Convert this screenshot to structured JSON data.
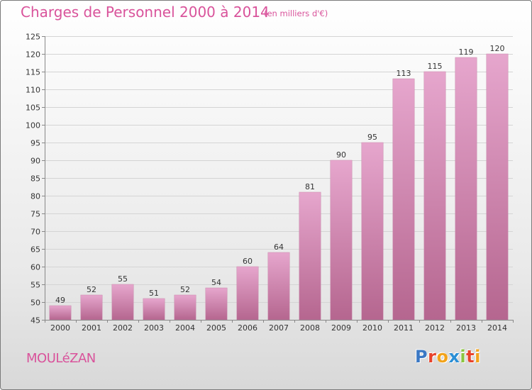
{
  "header": {
    "title": "Charges de Personnel 2000 à 2014",
    "subtitle": "(en milliers d'€)"
  },
  "footer": {
    "place": "MOULéZAN",
    "logo": "Proxiti",
    "logo_colors": [
      "#3b78c4",
      "#e8432b",
      "#f2a31b",
      "#2b8fd6",
      "#8bc53f",
      "#e8432b",
      "#f2a31b"
    ]
  },
  "colors": {
    "bar_light": "#e6a6cd",
    "bar_dark": "#b5668f",
    "grid": "#d4d4d4",
    "axis": "#888888",
    "title": "#d9539b"
  },
  "chart_data": {
    "type": "bar",
    "title": "Charges de Personnel 2000 à 2014",
    "subtitle": "(en milliers d'€)",
    "categories": [
      "2000",
      "2001",
      "2002",
      "2003",
      "2004",
      "2005",
      "2006",
      "2007",
      "2008",
      "2009",
      "2010",
      "2011",
      "2012",
      "2013",
      "2014"
    ],
    "values": [
      49,
      52,
      55,
      51,
      52,
      54,
      60,
      64,
      81,
      90,
      95,
      113,
      115,
      119,
      120
    ],
    "ylim": [
      45,
      125
    ],
    "yticks": [
      45,
      50,
      55,
      60,
      65,
      70,
      75,
      80,
      85,
      90,
      95,
      100,
      105,
      110,
      115,
      120,
      125
    ],
    "grid": true,
    "xlabel": "",
    "ylabel": ""
  }
}
